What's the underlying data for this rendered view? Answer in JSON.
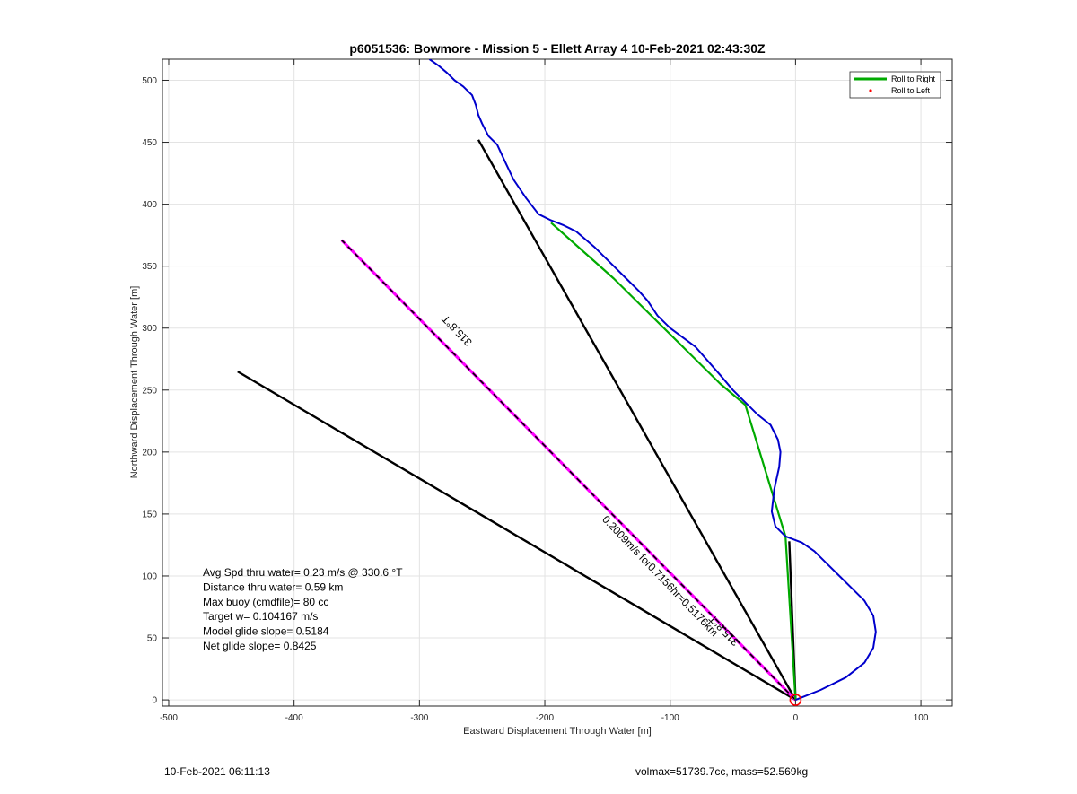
{
  "chart_data": {
    "type": "line",
    "title": "p6051536: Bowmore - Mission 5 - Ellett Array 4 10-Feb-2021 02:43:30Z",
    "xlabel": "Eastward Displacement Through Water [m]",
    "ylabel": "Northward Displacement Through Water [m]",
    "xlim": [
      -505,
      125
    ],
    "ylim": [
      -5,
      517
    ],
    "x_ticks": [
      -500,
      -400,
      -300,
      -200,
      -100,
      0,
      100
    ],
    "y_ticks": [
      0,
      50,
      100,
      150,
      200,
      250,
      300,
      350,
      400,
      450,
      500
    ],
    "x_tick_labels": [
      "-500",
      "-400",
      "-300",
      "-200",
      "-100",
      "0",
      "100"
    ],
    "y_tick_labels": [
      "0",
      "50",
      "100",
      "150",
      "200",
      "250",
      "300",
      "350",
      "400",
      "450",
      "500"
    ],
    "grid": true,
    "legend": {
      "placement": "top-right",
      "entries": [
        {
          "label": "Roll to Right",
          "color": "#00aa00",
          "marker": "line"
        },
        {
          "label": "Roll to Left",
          "color": "#ff0000",
          "marker": "dot"
        }
      ]
    },
    "series": [
      {
        "color": "#0000cc",
        "x": [
          0,
          5,
          20,
          40,
          55,
          62,
          64,
          62,
          55,
          45,
          35,
          25,
          15,
          5,
          -8,
          -16,
          -19,
          -17,
          -13,
          -12,
          -14,
          -20,
          -30,
          -40,
          -50,
          -60,
          -80,
          -100,
          -110,
          -118,
          -125,
          -135,
          -145,
          -160,
          -175,
          -185,
          -195,
          -205,
          -215,
          -225,
          -232,
          -238,
          -245,
          -250,
          -253,
          -255,
          -258,
          -265,
          -272,
          -278,
          -285,
          -292
        ],
        "y": [
          0,
          2,
          8,
          18,
          30,
          42,
          55,
          68,
          80,
          90,
          100,
          110,
          120,
          127,
          132,
          140,
          152,
          170,
          188,
          200,
          210,
          222,
          230,
          240,
          250,
          262,
          285,
          300,
          310,
          322,
          330,
          340,
          350,
          365,
          378,
          383,
          387,
          392,
          405,
          420,
          435,
          448,
          455,
          465,
          472,
          480,
          488,
          495,
          500,
          506,
          512,
          517
        ]
      },
      {
        "color": "#00aa00",
        "x": [
          0,
          -8,
          -40,
          -40,
          -60,
          -100,
          -145,
          -195
        ],
        "y": [
          0,
          132,
          238,
          238,
          255,
          295,
          340,
          385
        ]
      },
      {
        "color": "#000000",
        "x": [
          0,
          -253
        ],
        "y": [
          0,
          452
        ]
      },
      {
        "color": "#000000",
        "x": [
          0,
          -445
        ],
        "y": [
          0,
          265
        ]
      },
      {
        "color": "#000000",
        "x": [
          0,
          -5
        ],
        "y": [
          0,
          128
        ]
      },
      {
        "color": "#ff00ff",
        "dashed_over": "#000000",
        "x": [
          0,
          -362
        ],
        "y": [
          0,
          371
        ]
      }
    ],
    "line_annotations": [
      {
        "text": "315.8°T",
        "x": -268,
        "y": 300,
        "angle": 226.3
      },
      {
        "text": "315.8°T",
        "x": -55,
        "y": 58,
        "angle": 226.3
      },
      {
        "text": "0.2009m/s for0.7156hr=0.5176km",
        "x": -110,
        "y": 98,
        "angle": 46.3
      }
    ],
    "start_marker": {
      "x": 0,
      "y": 0,
      "color": "#ff0000"
    },
    "annotations": [
      "Avg Spd thru water=  0.23 m/s @ 330.6 °T",
      "Distance thru water=  0.59 km",
      "Max buoy (cmdfile)= 80 cc",
      "Target w= 0.104167 m/s",
      "Model glide slope= 0.5184",
      "Net glide slope= 0.8425"
    ]
  },
  "footer": {
    "left": "10-Feb-2021 06:11:13",
    "right": "volmax=51739.7cc, mass=52.569kg"
  }
}
